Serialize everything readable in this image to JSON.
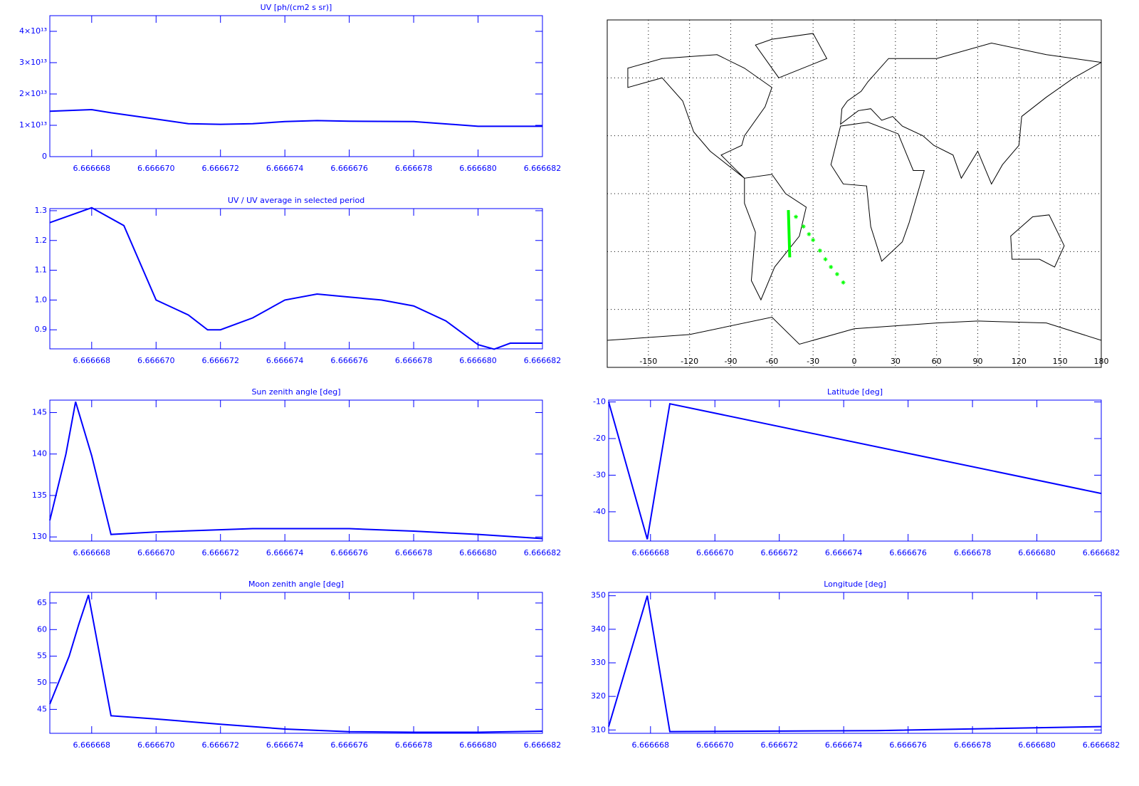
{
  "chart_data": [
    {
      "type": "line",
      "title": "UV [ph/(cm2 s sr)]",
      "color": "#0000ff",
      "x": [
        6.6666667,
        6.666668,
        6.6666686,
        6.66667,
        6.666671,
        6.666672,
        6.666673,
        6.666674,
        6.666675,
        6.666676,
        6.666678,
        6.66668,
        6.666682
      ],
      "values": [
        14500000000000,
        15000000000000,
        14000000000000,
        12000000000000,
        10500000000000,
        10300000000000,
        10500000000000,
        11200000000000,
        11500000000000,
        11300000000000,
        11200000000000,
        9700000000000,
        9700000000000
      ],
      "xlim": [
        6.6666667,
        6.666682
      ],
      "ylim": [
        0,
        45000000000000
      ],
      "xticks": [
        6.666668,
        {
          "value": 6.66667,
          "label": "6.666670"
        },
        6.666672,
        6.666674,
        6.666676,
        6.666678,
        {
          "value": 6.66668,
          "label": "6.666680"
        },
        6.666682
      ],
      "yticks": [
        0,
        {
          "value": 10000000000000,
          "label": "1×10¹³"
        },
        {
          "value": 20000000000000,
          "label": "2×10¹³"
        },
        {
          "value": 30000000000000,
          "label": "3×10¹³"
        },
        {
          "value": 40000000000000,
          "label": "4×10¹³"
        }
      ]
    },
    {
      "type": "line",
      "title": "UV / UV average in selected period",
      "color": "#0000ff",
      "x": [
        6.6666667,
        6.666668,
        6.666669,
        6.66667,
        6.666671,
        6.6666716,
        6.666672,
        6.666673,
        6.666674,
        6.666675,
        6.666676,
        6.666677,
        6.666678,
        6.666679,
        6.66668,
        6.6666805,
        6.666681,
        6.666682
      ],
      "values": [
        1.26,
        1.31,
        1.25,
        1.0,
        0.95,
        0.9,
        0.9,
        0.94,
        1.0,
        1.02,
        1.01,
        1.0,
        0.98,
        0.93,
        0.85,
        0.835,
        0.855,
        0.855
      ],
      "xlim": [
        6.6666667,
        6.666682
      ],
      "ylim": [
        0.836,
        1.307
      ],
      "xticks": [
        6.666668,
        {
          "value": 6.66667,
          "label": "6.666670"
        },
        6.666672,
        6.666674,
        6.666676,
        6.666678,
        {
          "value": 6.66668,
          "label": "6.666680"
        },
        6.666682
      ],
      "yticks": [
        0.9,
        {
          "value": 1,
          "label": "1.0"
        },
        1.1,
        1.2,
        1.3
      ]
    },
    {
      "type": "line",
      "title": "Sun zenith angle [deg]",
      "color": "#0000ff",
      "x": [
        6.6666667,
        6.6666672,
        6.6666675,
        6.666668,
        6.6666686,
        6.66667,
        6.666673,
        6.666676,
        6.666678,
        6.66668,
        6.666682
      ],
      "values": [
        132,
        140,
        146.3,
        139.8,
        130.3,
        130.6,
        131,
        131,
        130.7,
        130.3,
        129.8
      ],
      "xlim": [
        6.6666667,
        6.666682
      ],
      "ylim": [
        129.5,
        146.5
      ],
      "xticks": [
        6.666668,
        {
          "value": 6.66667,
          "label": "6.666670"
        },
        6.666672,
        6.666674,
        6.666676,
        6.666678,
        {
          "value": 6.66668,
          "label": "6.666680"
        },
        6.666682
      ],
      "yticks": [
        130,
        135,
        140,
        145
      ]
    },
    {
      "type": "line",
      "title": "Moon zenith angle [deg]",
      "color": "#0000ff",
      "x": [
        6.6666667,
        6.6666673,
        6.6666676,
        6.6666679,
        6.6666686,
        6.66667,
        6.666672,
        6.666674,
        6.666676,
        6.666678,
        6.66668,
        6.666682
      ],
      "values": [
        46,
        55,
        61,
        66.5,
        43.8,
        43.2,
        42.2,
        41.3,
        40.8,
        40.7,
        40.7,
        40.9
      ],
      "xlim": [
        6.6666667,
        6.666682
      ],
      "ylim": [
        40.5,
        67
      ],
      "xticks": [
        6.666668,
        {
          "value": 6.66667,
          "label": "6.666670"
        },
        6.666672,
        6.666674,
        6.666676,
        6.666678,
        {
          "value": 6.66668,
          "label": "6.666680"
        },
        6.666682
      ],
      "yticks": [
        45,
        50,
        55,
        60,
        65
      ]
    },
    {
      "type": "line",
      "title": "Latitude [deg]",
      "color": "#0000ff",
      "x": [
        6.6666667,
        6.6666679,
        6.6666686,
        6.666682
      ],
      "values": [
        -10,
        -47.5,
        -10.5,
        -35
      ],
      "xlim": [
        6.6666667,
        6.666682
      ],
      "ylim": [
        -48,
        -9.5
      ],
      "xticks": [
        6.666668,
        {
          "value": 6.66667,
          "label": "6.666670"
        },
        6.666672,
        6.666674,
        6.666676,
        6.666678,
        {
          "value": 6.66668,
          "label": "6.666680"
        },
        6.666682
      ],
      "yticks": [
        -10,
        -20,
        -30,
        -40
      ]
    },
    {
      "type": "line",
      "title": "Longitude [deg]",
      "color": "#0000ff",
      "x": [
        6.6666667,
        6.6666679,
        6.6666686,
        6.666675,
        6.666682
      ],
      "values": [
        311,
        350,
        309.5,
        309.8,
        311
      ],
      "xlim": [
        6.6666667,
        6.666682
      ],
      "ylim": [
        309,
        351
      ],
      "xticks": [
        6.666668,
        {
          "value": 6.66667,
          "label": "6.666670"
        },
        6.666672,
        6.666674,
        6.666676,
        6.666678,
        {
          "value": 6.66668,
          "label": "6.666680"
        },
        6.666682
      ],
      "yticks": [
        310,
        320,
        330,
        340,
        350
      ]
    },
    {
      "type": "map",
      "color": "#00ff00",
      "grid": true,
      "xlim": [
        -180,
        180
      ],
      "ylim": [
        -90,
        90
      ],
      "xticks": [
        -150,
        -120,
        -90,
        -60,
        -30,
        0,
        30,
        60,
        90,
        120,
        150,
        180
      ],
      "yticks": [
        -60,
        -30,
        0,
        30,
        60
      ],
      "track": {
        "x": [
          -48,
          -47
        ],
        "values": [
          -8.5,
          -33
        ]
      },
      "stars": {
        "x": [
          -42.5,
          -37,
          -33,
          -30,
          -25,
          -21,
          -17,
          -12.5,
          -8
        ],
        "values": [
          -12,
          -17,
          -21,
          -24,
          -29.5,
          -34,
          -38,
          -41.7,
          -46
        ]
      }
    }
  ]
}
